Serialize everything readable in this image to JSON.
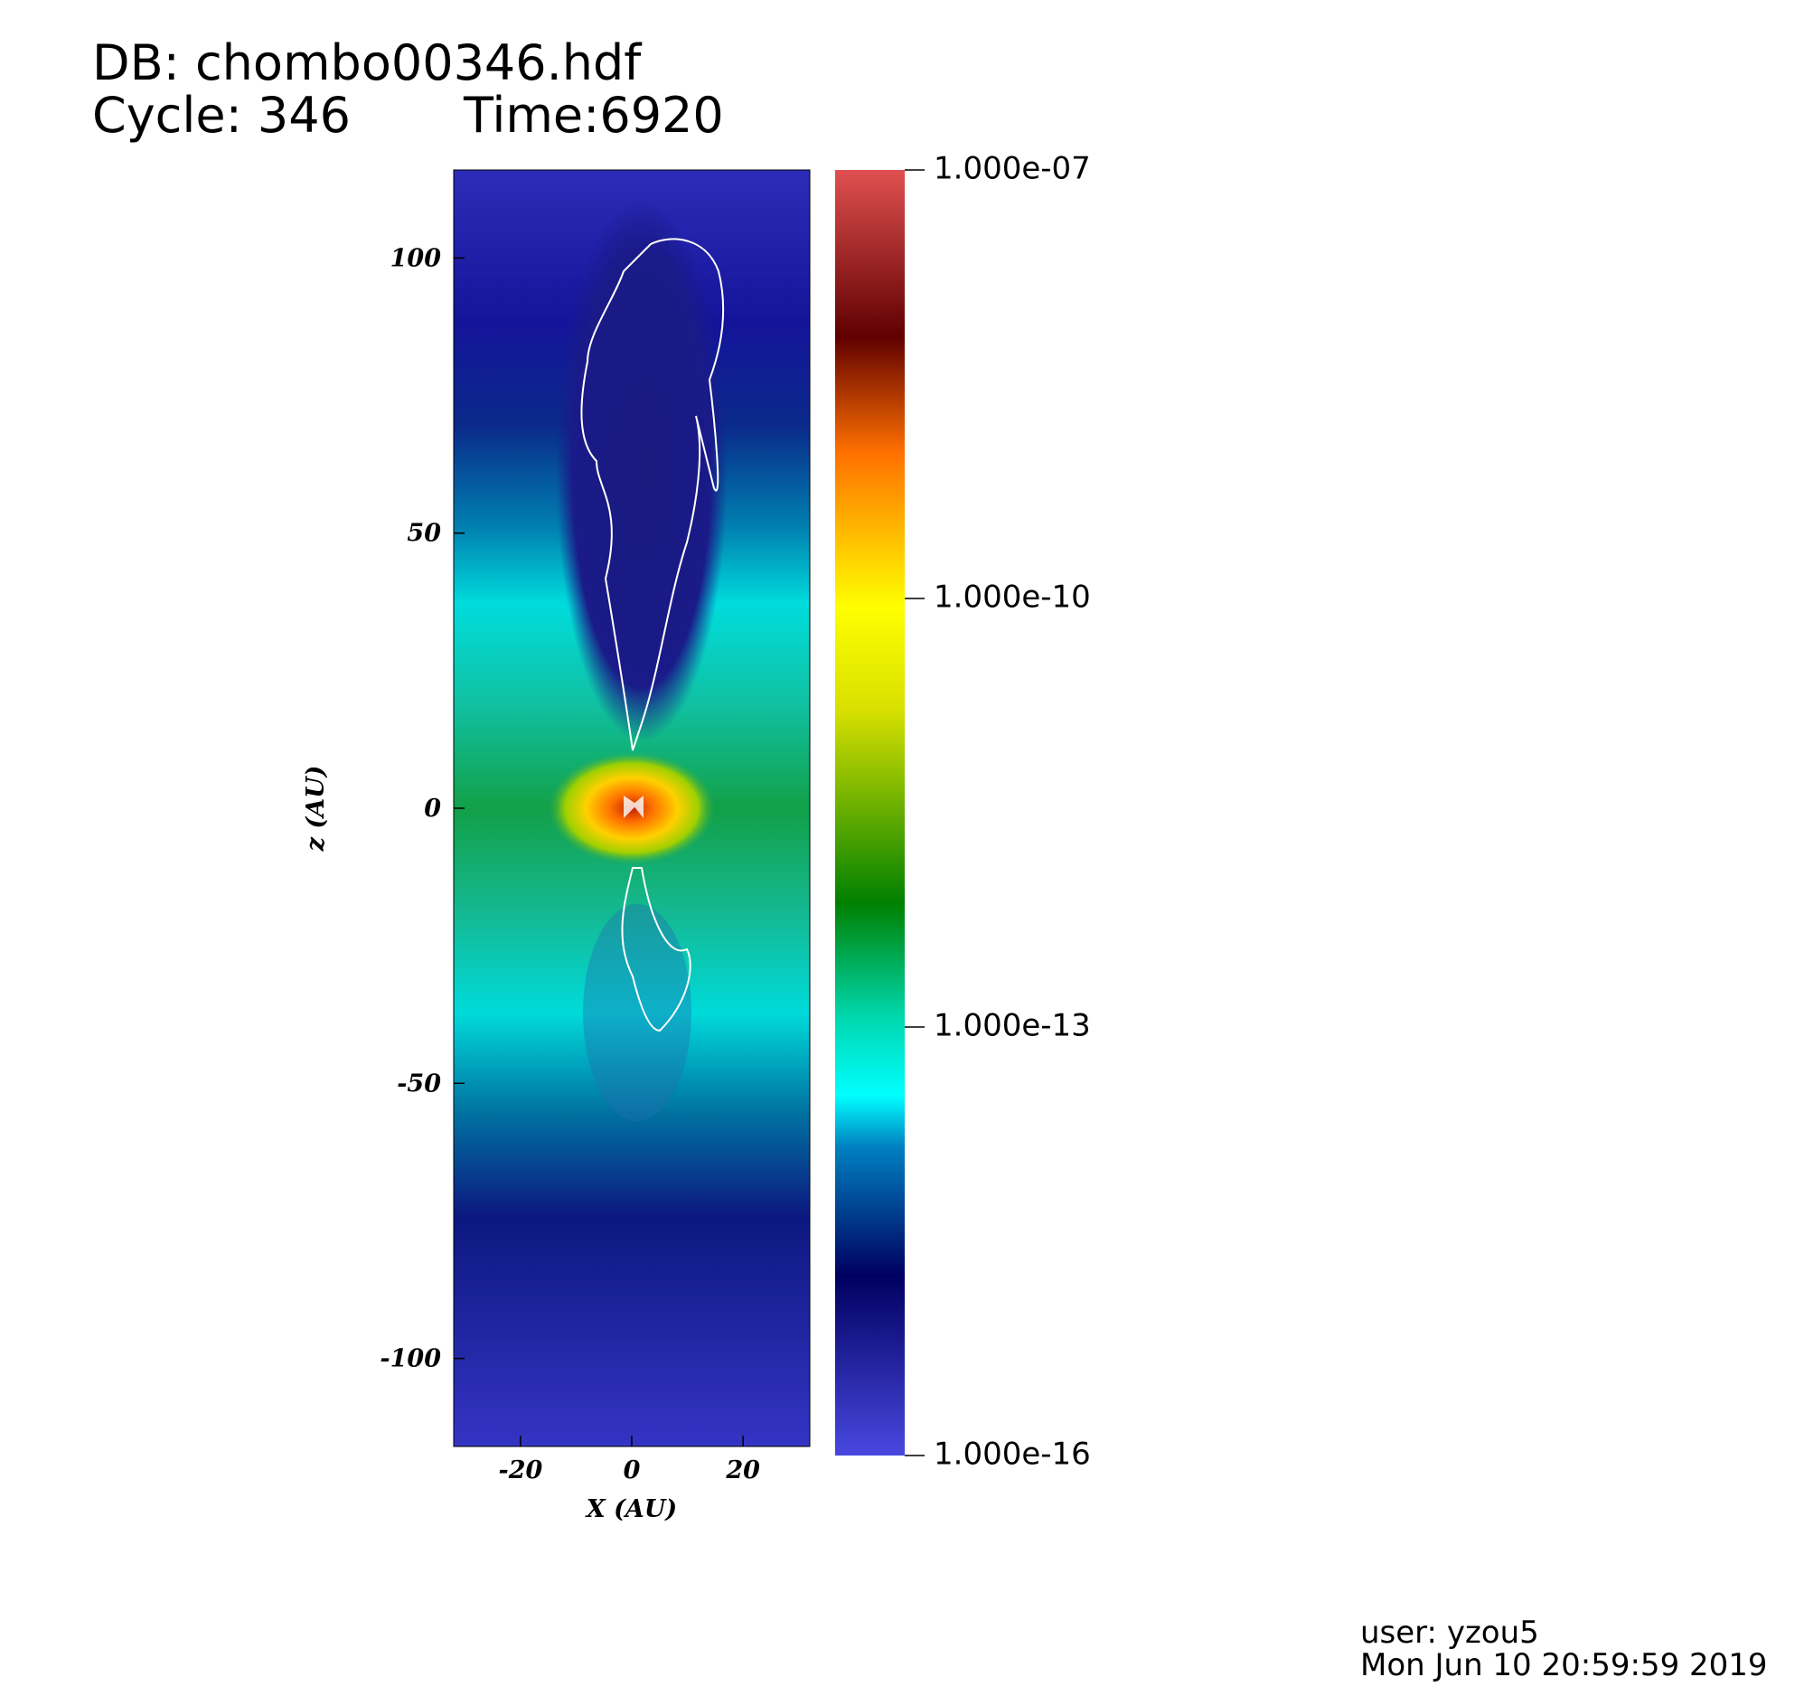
{
  "chart_data": {
    "type": "pseudocolor",
    "title": "DB: chombo00346.hdf",
    "subtitle": [
      "Cycle: 346",
      "Time:6920"
    ],
    "xlabel": "X (AU)",
    "ylabel": "z (AU)",
    "xlim": [
      -32,
      32
    ],
    "xticks": [
      -20,
      0,
      20
    ],
    "ylim": [
      -116,
      116
    ],
    "yticks": [
      -100,
      -50,
      0,
      50,
      100
    ],
    "colorbar": {
      "scale": "log",
      "lim": [
        1e-16,
        1e-07
      ],
      "ticks": [
        {
          "value": 1e-07,
          "label": "1.000e-07"
        },
        {
          "value": 1e-10,
          "label": "1.000e-10"
        },
        {
          "value": 1e-13,
          "label": "1.000e-13"
        },
        {
          "value": 1e-16,
          "label": "1.000e-16"
        }
      ]
    }
  },
  "footer": {
    "user": "user: yzou5",
    "date": "Mon Jun 10 20:59:59 2019"
  }
}
